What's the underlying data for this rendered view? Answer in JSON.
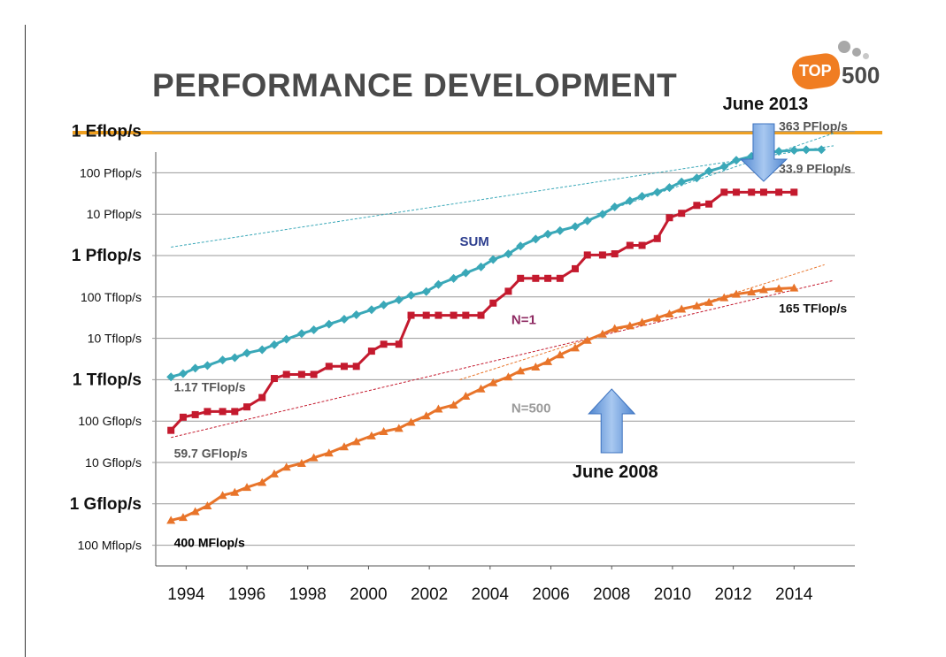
{
  "slide": {
    "title": "PERFORMANCE DEVELOPMENT",
    "logo_top": "TOP",
    "logo_num": "500"
  },
  "chart_data": {
    "type": "line",
    "title": "PERFORMANCE DEVELOPMENT",
    "xlabel": "",
    "ylabel": "",
    "y_scale": "log",
    "x_ticks": [
      1994,
      1996,
      1998,
      2000,
      2002,
      2004,
      2006,
      2008,
      2010,
      2012,
      2014
    ],
    "y_ticks": [
      {
        "label": "1 Eflop/s",
        "flops": 1e+18,
        "bold": true
      },
      {
        "label": "100 Pflop/s",
        "flops": 1e+17,
        "bold": false
      },
      {
        "label": "10 Pflop/s",
        "flops": 1e+16,
        "bold": false
      },
      {
        "label": "1 Pflop/s",
        "flops": 1000000000000000.0,
        "bold": true
      },
      {
        "label": "100 Tflop/s",
        "flops": 100000000000000.0,
        "bold": false
      },
      {
        "label": "10 Tflop/s",
        "flops": 10000000000000.0,
        "bold": false
      },
      {
        "label": "1 Tflop/s",
        "flops": 1000000000000.0,
        "bold": true
      },
      {
        "label": "100 Gflop/s",
        "flops": 100000000000.0,
        "bold": false
      },
      {
        "label": "10 Gflop/s",
        "flops": 10000000000.0,
        "bold": false
      },
      {
        "label": "1 Gflop/s",
        "flops": 1000000000.0,
        "bold": true
      },
      {
        "label": "100 Mflop/s",
        "flops": 100000000.0,
        "bold": false
      }
    ],
    "xlim": [
      1993,
      2016
    ],
    "ylim": [
      100000000.0,
      1e+19
    ],
    "grid": true,
    "series": [
      {
        "name": "SUM",
        "color": "#3aa8b8",
        "marker": "diamond",
        "points": [
          [
            1993.5,
            1170000000000.0
          ],
          [
            1993.9,
            1400000000000.0
          ],
          [
            1994.3,
            1900000000000.0
          ],
          [
            1994.7,
            2200000000000.0
          ],
          [
            1995.2,
            3000000000000.0
          ],
          [
            1995.6,
            3400000000000.0
          ],
          [
            1996.0,
            4400000000000.0
          ],
          [
            1996.5,
            5300000000000.0
          ],
          [
            1996.9,
            7000000000000.0
          ],
          [
            1997.3,
            9500000000000.0
          ],
          [
            1997.8,
            13000000000000.0
          ],
          [
            1998.2,
            16000000000000.0
          ],
          [
            1998.7,
            22000000000000.0
          ],
          [
            1999.2,
            29000000000000.0
          ],
          [
            1999.6,
            37000000000000.0
          ],
          [
            2000.1,
            49000000000000.0
          ],
          [
            2000.5,
            64000000000000.0
          ],
          [
            2001.0,
            85000000000000.0
          ],
          [
            2001.4,
            110000000000000.0
          ],
          [
            2001.9,
            135000000000000.0
          ],
          [
            2002.3,
            200000000000000.0
          ],
          [
            2002.8,
            280000000000000.0
          ],
          [
            2003.2,
            380000000000000.0
          ],
          [
            2003.7,
            530000000000000.0
          ],
          [
            2004.1,
            800000000000000.0
          ],
          [
            2004.6,
            1100000000000000.0
          ],
          [
            2005.0,
            1700000000000000.0
          ],
          [
            2005.5,
            2500000000000000.0
          ],
          [
            2005.9,
            3300000000000000.0
          ],
          [
            2006.3,
            4000000000000000.0
          ],
          [
            2006.8,
            5000000000000000.0
          ],
          [
            2007.2,
            6900000000000000.0
          ],
          [
            2007.7,
            1e+16
          ],
          [
            2008.1,
            1.5e+16
          ],
          [
            2008.6,
            2.1e+16
          ],
          [
            2009.0,
            2.7e+16
          ],
          [
            2009.5,
            3.4e+16
          ],
          [
            2009.9,
            4.4e+16
          ],
          [
            2010.3,
            6e+16
          ],
          [
            2010.8,
            7.5e+16
          ],
          [
            2011.2,
            1.1e+17
          ],
          [
            2011.7,
            1.4e+17
          ],
          [
            2012.1,
            2e+17
          ],
          [
            2012.6,
            2.5e+17
          ],
          [
            2013.0,
            3e+17
          ],
          [
            2013.5,
            3.3e+17
          ],
          [
            2014.0,
            3.5e+17
          ],
          [
            2014.4,
            3.6e+17
          ],
          [
            2014.9,
            3.63e+17
          ]
        ]
      },
      {
        "name": "N=1",
        "color": "#c41a2e",
        "marker": "square",
        "points": [
          [
            1993.5,
            59700000000.0
          ],
          [
            1993.9,
            124000000000.0
          ],
          [
            1994.3,
            143000000000.0
          ],
          [
            1994.7,
            170000000000.0
          ],
          [
            1995.2,
            170000000000.0
          ],
          [
            1995.6,
            170000000000.0
          ],
          [
            1996.0,
            220000000000.0
          ],
          [
            1996.5,
            370000000000.0
          ],
          [
            1996.9,
            1070000000000.0
          ],
          [
            1997.3,
            1340000000000.0
          ],
          [
            1997.8,
            1340000000000.0
          ],
          [
            1998.2,
            1340000000000.0
          ],
          [
            1998.7,
            2100000000000.0
          ],
          [
            1999.2,
            2100000000000.0
          ],
          [
            1999.6,
            2100000000000.0
          ],
          [
            2000.1,
            4900000000000.0
          ],
          [
            2000.5,
            7200000000000.0
          ],
          [
            2001.0,
            7200000000000.0
          ],
          [
            2001.4,
            36000000000000.0
          ],
          [
            2001.9,
            36000000000000.0
          ],
          [
            2002.3,
            36000000000000.0
          ],
          [
            2002.8,
            36000000000000.0
          ],
          [
            2003.2,
            36000000000000.0
          ],
          [
            2003.7,
            36000000000000.0
          ],
          [
            2004.1,
            71000000000000.0
          ],
          [
            2004.6,
            137000000000000.0
          ],
          [
            2005.0,
            281000000000000.0
          ],
          [
            2005.5,
            281000000000000.0
          ],
          [
            2005.9,
            281000000000000.0
          ],
          [
            2006.3,
            281000000000000.0
          ],
          [
            2006.8,
            480000000000000.0
          ],
          [
            2007.2,
            1030000000000000.0
          ],
          [
            2007.7,
            1030000000000000.0
          ],
          [
            2008.1,
            1100000000000000.0
          ],
          [
            2008.6,
            1760000000000000.0
          ],
          [
            2009.0,
            1760000000000000.0
          ],
          [
            2009.5,
            2570000000000000.0
          ],
          [
            2009.9,
            8200000000000000.0
          ],
          [
            2010.3,
            1.05e+16
          ],
          [
            2010.8,
            1.63e+16
          ],
          [
            2011.2,
            1.76e+16
          ],
          [
            2011.7,
            3.39e+16
          ],
          [
            2012.1,
            3.39e+16
          ],
          [
            2012.6,
            3.39e+16
          ],
          [
            2013.0,
            3.39e+16
          ],
          [
            2013.5,
            3.39e+16
          ],
          [
            2014.0,
            3.39e+16
          ]
        ]
      },
      {
        "name": "N=500",
        "color": "#e8742a",
        "marker": "triangle",
        "points": [
          [
            1993.5,
            400000000.0
          ],
          [
            1993.9,
            470000000.0
          ],
          [
            1994.3,
            650000000.0
          ],
          [
            1994.7,
            900000000.0
          ],
          [
            1995.2,
            1600000000.0
          ],
          [
            1995.6,
            1900000000.0
          ],
          [
            1996.0,
            2500000000.0
          ],
          [
            1996.5,
            3300000000.0
          ],
          [
            1996.9,
            5300000000.0
          ],
          [
            1997.3,
            7700000000.0
          ],
          [
            1997.8,
            9500000000.0
          ],
          [
            1998.2,
            13000000000.0
          ],
          [
            1998.7,
            17000000000.0
          ],
          [
            1999.2,
            24000000000.0
          ],
          [
            1999.6,
            32000000000.0
          ],
          [
            2000.1,
            44000000000.0
          ],
          [
            2000.5,
            56000000000.0
          ],
          [
            2001.0,
            67000000000.0
          ],
          [
            2001.4,
            94000000000.0
          ],
          [
            2001.9,
            134000000000.0
          ],
          [
            2002.3,
            196000000000.0
          ],
          [
            2002.8,
            245000000000.0
          ],
          [
            2003.2,
            400000000000.0
          ],
          [
            2003.7,
            600000000000.0
          ],
          [
            2004.1,
            850000000000.0
          ],
          [
            2004.6,
            1170000000000.0
          ],
          [
            2005.0,
            1640000000000.0
          ],
          [
            2005.5,
            2030000000000.0
          ],
          [
            2005.9,
            2740000000000.0
          ],
          [
            2006.3,
            4000000000000.0
          ],
          [
            2006.8,
            5900000000000.0
          ],
          [
            2007.2,
            9000000000000.0
          ],
          [
            2007.7,
            12700000000000.0
          ],
          [
            2008.1,
            17300000000000.0
          ],
          [
            2008.6,
            20100000000000.0
          ],
          [
            2009.0,
            24400000000000.0
          ],
          [
            2009.5,
            31000000000000.0
          ],
          [
            2009.9,
            39000000000000.0
          ],
          [
            2010.3,
            51000000000000.0
          ],
          [
            2010.8,
            61000000000000.0
          ],
          [
            2011.2,
            74000000000000.0
          ],
          [
            2011.7,
            96000000000000.0
          ],
          [
            2012.1,
            117000000000000.0
          ],
          [
            2012.6,
            132000000000000.0
          ],
          [
            2013.0,
            150000000000000.0
          ],
          [
            2013.5,
            159000000000000.0
          ],
          [
            2014.0,
            165000000000000.0
          ]
        ]
      }
    ],
    "trendlines": [
      {
        "series": "SUM",
        "color": "#3aa8b8",
        "from": [
          1993.5,
          1600000000000000.0
        ],
        "to": [
          2015.3,
          4.5e+17
        ]
      },
      {
        "series": "SUM",
        "color": "#3aa8b8",
        "from": [
          2007.5,
          1e+16
        ],
        "to": [
          2015.3,
          9e+17
        ]
      },
      {
        "series": "N=1",
        "color": "#c41a2e",
        "from": [
          1993.5,
          40000000000.0
        ],
        "to": [
          2015.3,
          250000000000000.0
        ]
      },
      {
        "series": "N=500",
        "color": "#e8742a",
        "from": [
          2003.0,
          1000000000000.0
        ],
        "to": [
          2015.0,
          600000000000000.0
        ]
      }
    ],
    "labels": [
      {
        "text": "SUM",
        "x": 2003.0,
        "y": 1700000000000000.0,
        "color": "#2e3f8f",
        "bold": true,
        "size": 15
      },
      {
        "text": "N=1",
        "x": 2004.7,
        "y": 22000000000000.0,
        "color": "#8e2a62",
        "bold": true,
        "size": 15
      },
      {
        "text": "N=500",
        "x": 2004.7,
        "y": 160000000000.0,
        "color": "#9a9a9a",
        "bold": true,
        "size": 15
      },
      {
        "text": "1.17 TFlop/s",
        "x": 1993.6,
        "y": 530000000000.0,
        "color": "#555555",
        "bold": true,
        "size": 14
      },
      {
        "text": "59.7 GFlop/s",
        "x": 1993.6,
        "y": 13000000000.0,
        "color": "#555555",
        "bold": true,
        "size": 14
      },
      {
        "text": "400 MFlop/s",
        "x": 1993.6,
        "y": 92000000.0,
        "color": "#000000",
        "bold": true,
        "size": 14
      },
      {
        "text": "363 PFlop/s",
        "x": 2013.5,
        "y": 1.05e+18,
        "color": "#555555",
        "bold": true,
        "size": 14
      },
      {
        "text": "33.9 PFlop/s",
        "x": 2013.5,
        "y": 1e+17,
        "color": "#555555",
        "bold": true,
        "size": 14
      },
      {
        "text": "165 TFlop/s",
        "x": 2013.5,
        "y": 42000000000000.0,
        "color": "#111111",
        "bold": true,
        "size": 14
      }
    ],
    "callouts": [
      {
        "text": "June 2013",
        "x": 2013.0,
        "direction": "down"
      },
      {
        "text": "June 2008",
        "x": 2008.0,
        "direction": "up"
      }
    ]
  }
}
